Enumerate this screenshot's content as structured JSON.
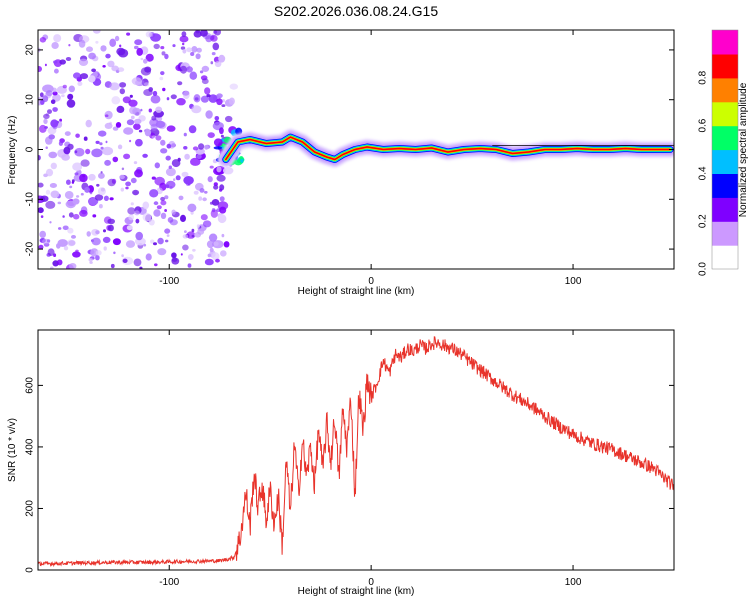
{
  "title": "S202.2026.036.08.24.G15",
  "chart_data": [
    {
      "type": "heatmap",
      "xlabel": "Height of straight line (km)",
      "ylabel": "Frequency (Hz)",
      "xlim": [
        -165,
        150
      ],
      "ylim": [
        -24,
        24
      ],
      "xticks": [
        -100,
        0,
        100
      ],
      "yticks": [
        -20,
        -10,
        0,
        10,
        20
      ],
      "colorbar": {
        "label": "Normalized spectral amplitude",
        "range": [
          0.0,
          1.0
        ],
        "ticks": [
          "0.0",
          "0.2",
          "0.4",
          "0.6",
          "0.8"
        ],
        "colors": [
          "#ffffff",
          "#cc99ff",
          "#7f00ff",
          "#0000ff",
          "#00bfff",
          "#00ff66",
          "#ccff00",
          "#ff8000",
          "#ff0000",
          "#ff00cc"
        ]
      },
      "ridge": {
        "x": [
          -72,
          -66,
          -60,
          -52,
          -44,
          -40,
          -34,
          -28,
          -22,
          -18,
          -14,
          -8,
          -2,
          6,
          14,
          22,
          30,
          38,
          46,
          54,
          62,
          70,
          78,
          86,
          94,
          102,
          110,
          118,
          126,
          134,
          142,
          148
        ],
        "y": [
          -2.0,
          1.5,
          2.0,
          1.2,
          1.5,
          2.5,
          1.5,
          -0.5,
          -1.5,
          -2.0,
          -1.0,
          0.0,
          0.5,
          0.0,
          0.2,
          0.0,
          0.3,
          -0.5,
          0.0,
          0.2,
          0.0,
          -0.8,
          -0.5,
          0.0,
          0.0,
          0.2,
          0.0,
          0.0,
          0.2,
          0.0,
          0.0,
          0.0
        ]
      },
      "noise_region_x": [
        -165,
        -73
      ]
    },
    {
      "type": "line",
      "xlabel": "Height of straight line (km)",
      "ylabel": "SNR (10 * v/v)",
      "xlim": [
        -165,
        150
      ],
      "ylim": [
        0,
        780
      ],
      "xticks": [
        -100,
        0,
        100
      ],
      "yticks": [
        0,
        200,
        400,
        600
      ],
      "color": "#e8332b",
      "x": [
        -165,
        -150,
        -130,
        -110,
        -90,
        -75,
        -68,
        -65,
        -62,
        -60,
        -58,
        -56,
        -54,
        -52,
        -50,
        -48,
        -46,
        -44,
        -42,
        -40,
        -38,
        -36,
        -34,
        -32,
        -30,
        -28,
        -26,
        -24,
        -22,
        -20,
        -18,
        -16,
        -14,
        -12,
        -10,
        -8,
        -6,
        -4,
        -2,
        0,
        3,
        6,
        9,
        12,
        15,
        18,
        21,
        24,
        27,
        30,
        33,
        36,
        40,
        45,
        50,
        60,
        70,
        80,
        90,
        100,
        110,
        120,
        130,
        140,
        150
      ],
      "y": [
        20,
        22,
        25,
        25,
        28,
        30,
        40,
        100,
        250,
        140,
        320,
        200,
        280,
        160,
        260,
        150,
        240,
        80,
        360,
        180,
        410,
        250,
        420,
        300,
        400,
        280,
        460,
        320,
        480,
        350,
        500,
        300,
        520,
        400,
        560,
        240,
        580,
        450,
        620,
        560,
        610,
        680,
        640,
        700,
        690,
        720,
        710,
        730,
        720,
        735,
        740,
        730,
        720,
        700,
        670,
        620,
        570,
        530,
        480,
        440,
        410,
        390,
        360,
        330,
        270
      ]
    }
  ]
}
